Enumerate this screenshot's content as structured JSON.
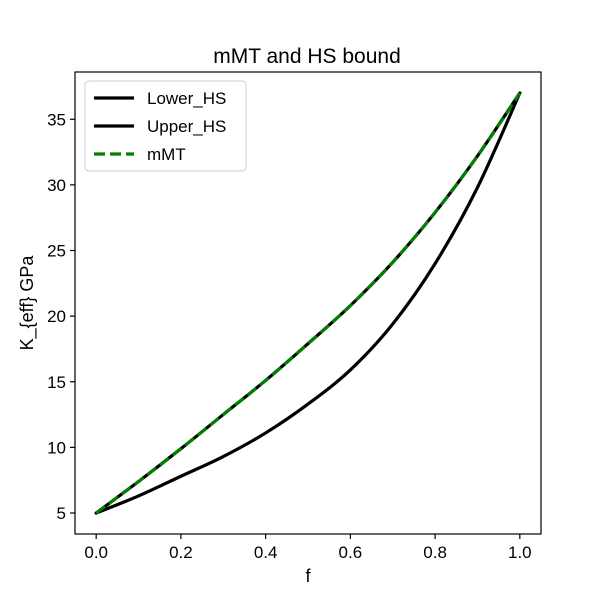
{
  "chart_data": {
    "type": "line",
    "title": "mMT and HS bound",
    "xlabel": "f",
    "ylabel": "K_{eff} GPa",
    "xlim": [
      -0.05,
      1.05
    ],
    "ylim": [
      3.4,
      38.6
    ],
    "xticks": [
      0.0,
      0.2,
      0.4,
      0.6,
      0.8,
      1.0
    ],
    "xtick_labels": [
      "0.0",
      "0.2",
      "0.4",
      "0.6",
      "0.8",
      "1.0"
    ],
    "yticks": [
      5,
      10,
      15,
      20,
      25,
      30,
      35
    ],
    "ytick_labels": [
      "5",
      "10",
      "15",
      "20",
      "25",
      "30",
      "35"
    ],
    "grid": false,
    "legend_position": "upper-left",
    "x": [
      0.0,
      0.1,
      0.2,
      0.3,
      0.4,
      0.5,
      0.6,
      0.7,
      0.8,
      0.9,
      1.0
    ],
    "series": [
      {
        "name": "Lower_HS",
        "color": "#000000",
        "style": "solid",
        "values": [
          5.0,
          6.3,
          7.8,
          9.3,
          11.1,
          13.3,
          15.9,
          19.4,
          24.0,
          29.8,
          37.0
        ]
      },
      {
        "name": "Upper_HS",
        "color": "#000000",
        "style": "solid",
        "values": [
          5.0,
          7.4,
          9.9,
          12.5,
          15.1,
          17.9,
          20.8,
          24.1,
          27.9,
          32.2,
          37.0
        ]
      },
      {
        "name": "mMT",
        "color": "#008000",
        "style": "dashed",
        "values": [
          5.0,
          7.4,
          9.9,
          12.5,
          15.1,
          17.9,
          20.8,
          24.1,
          27.9,
          32.2,
          37.0
        ]
      }
    ]
  }
}
